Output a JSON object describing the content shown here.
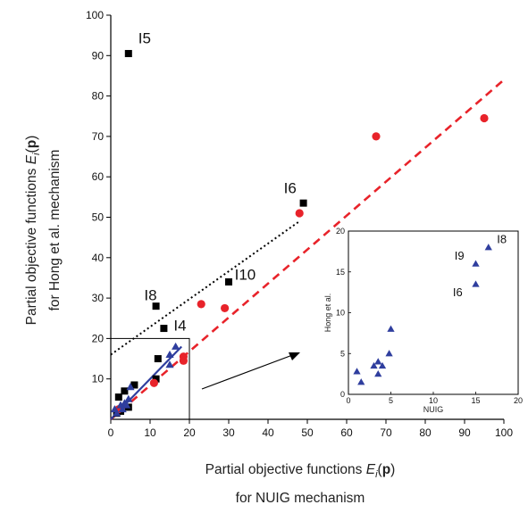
{
  "chart_data": [
    {
      "type": "scatter",
      "xlabel_lines": [
        "Partial objective functions E_i(p)",
        "for NUIG mechanism"
      ],
      "ylabel_lines": [
        "Partial objective functions E_i(p)",
        "for Hong et al. mechanism"
      ],
      "xlim": [
        0,
        100
      ],
      "ylim": [
        0,
        100
      ],
      "xticks": [
        "0",
        "10",
        "20",
        "30",
        "40",
        "50",
        "60",
        "70",
        "80",
        "90",
        "100"
      ],
      "yticks": [
        "10",
        "20",
        "30",
        "40",
        "50",
        "60",
        "70",
        "80",
        "90",
        "100"
      ],
      "grid": false,
      "series": [
        {
          "marker": "square",
          "color": "#000000",
          "points": [
            [
              4.5,
              90.5
            ],
            [
              49,
              53.5
            ],
            [
              30,
              34
            ],
            [
              11.5,
              28
            ],
            [
              13.5,
              22.5
            ],
            [
              12,
              15
            ],
            [
              2,
              5.5
            ],
            [
              11.5,
              10
            ],
            [
              6,
              8.5
            ],
            [
              3.5,
              7
            ],
            [
              2.5,
              2
            ],
            [
              4.5,
              3
            ],
            [
              1.5,
              1.5
            ]
          ]
        },
        {
          "marker": "circle",
          "color": "#e8232a",
          "points": [
            [
              48,
              51
            ],
            [
              95,
              74.5
            ],
            [
              67.5,
              70
            ],
            [
              23,
              28.5
            ],
            [
              29,
              27.5
            ],
            [
              18.5,
              15.5
            ],
            [
              18.5,
              14.5
            ],
            [
              11,
              9
            ],
            [
              2,
              2.5
            ]
          ]
        },
        {
          "marker": "triangle",
          "color": "#2f3e9e",
          "points": [
            [
              16.5,
              18
            ],
            [
              15,
              16
            ],
            [
              15,
              13.5
            ],
            [
              5,
              8
            ],
            [
              3.5,
              4
            ],
            [
              2.5,
              3.5
            ],
            [
              4.5,
              5
            ],
            [
              1,
              2.5
            ],
            [
              1.5,
              1.5
            ],
            [
              3,
              2.5
            ],
            [
              4,
              3.5
            ]
          ]
        }
      ],
      "lines": [
        {
          "style": "dashed",
          "color": "#e8232a",
          "from": [
            0,
            0
          ],
          "to": [
            100,
            84
          ]
        },
        {
          "style": "dotted",
          "color": "#000000",
          "from": [
            0,
            16
          ],
          "to": [
            48,
            49
          ]
        },
        {
          "style": "solid",
          "color": "#2f3e9e",
          "from": [
            0,
            0
          ],
          "to": [
            18,
            18
          ]
        }
      ],
      "annotations": [
        {
          "text": "I5",
          "x": 7,
          "y": 93
        },
        {
          "text": "I6",
          "x": 44,
          "y": 56
        },
        {
          "text": "I10",
          "x": 31.5,
          "y": 34.5
        },
        {
          "text": "I8",
          "x": 8.5,
          "y": 29.5
        },
        {
          "text": "I4",
          "x": 16,
          "y": 22
        }
      ],
      "highlight_box": {
        "x": [
          0,
          20
        ],
        "y": [
          0,
          20
        ]
      }
    },
    {
      "type": "scatter",
      "xlabel": "NUIG",
      "ylabel": "Hong et al.",
      "xlim": [
        0,
        20
      ],
      "ylim": [
        0,
        20
      ],
      "xticks": [
        "0",
        "5",
        "10",
        "15",
        "20"
      ],
      "yticks": [
        "0",
        "5",
        "10",
        "15",
        "20"
      ],
      "grid": false,
      "series": [
        {
          "marker": "triangle",
          "color": "#2f3e9e",
          "points": [
            [
              16.5,
              18
            ],
            [
              15,
              16
            ],
            [
              15,
              13.5
            ],
            [
              5,
              8
            ],
            [
              4.8,
              5
            ],
            [
              3.5,
              4
            ],
            [
              4,
              3.5
            ],
            [
              3,
              3.5
            ],
            [
              3.5,
              2.5
            ],
            [
              1,
              2.8
            ],
            [
              1.5,
              1.5
            ]
          ]
        }
      ],
      "annotations": [
        {
          "text": "I9",
          "x": 12.5,
          "y": 16.5
        },
        {
          "text": "I8",
          "x": 17.5,
          "y": 18.5
        },
        {
          "text": "I6",
          "x": 12.3,
          "y": 12
        }
      ]
    }
  ]
}
